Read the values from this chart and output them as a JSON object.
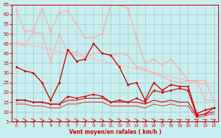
{
  "xlabel": "Vent moyen/en rafales ( km/h )",
  "xlim": [
    -0.5,
    23.5
  ],
  "ylim": [
    5,
    65
  ],
  "yticks": [
    5,
    10,
    15,
    20,
    25,
    30,
    35,
    40,
    45,
    50,
    55,
    60,
    65
  ],
  "xticks": [
    0,
    1,
    2,
    3,
    4,
    5,
    6,
    7,
    8,
    9,
    10,
    11,
    12,
    13,
    14,
    15,
    16,
    17,
    18,
    19,
    20,
    21,
    22,
    23
  ],
  "bg_color": "#c8eef0",
  "grid_color": "#a0c8c8",
  "series": [
    {
      "name": "light_upper",
      "data": [
        62,
        51,
        52,
        63,
        51,
        61,
        62,
        55,
        48,
        48,
        50,
        65,
        65,
        63,
        48,
        35,
        37,
        34,
        37,
        32,
        26,
        26,
        16,
        16
      ],
      "color": "#ffaaaa",
      "lw": 0.9,
      "marker": "D",
      "ms": 2.0,
      "zorder": 2
    },
    {
      "name": "light_lower",
      "data": [
        46,
        45,
        44,
        43,
        42,
        41,
        40,
        39,
        38,
        37,
        36,
        35,
        34,
        33,
        32,
        31,
        30,
        29,
        28,
        27,
        26,
        25,
        24,
        23
      ],
      "color": "#ffbbbb",
      "lw": 0.9,
      "marker": null,
      "ms": 0,
      "zorder": 1
    },
    {
      "name": "light_mid",
      "data": [
        45,
        44,
        51,
        50,
        36,
        50,
        40,
        41,
        38,
        40,
        40,
        39,
        40,
        39,
        33,
        32,
        30,
        28,
        26,
        25,
        26,
        26,
        26,
        16
      ],
      "color": "#ffaaaa",
      "lw": 0.9,
      "marker": "D",
      "ms": 2.0,
      "zorder": 2
    },
    {
      "name": "dark_upper",
      "data": [
        33,
        31,
        30,
        25,
        16,
        25,
        42,
        36,
        37,
        45,
        40,
        39,
        33,
        24,
        25,
        16,
        25,
        21,
        24,
        23,
        23,
        9,
        11,
        12
      ],
      "color": "#cc0000",
      "lw": 1.0,
      "marker": "D",
      "ms": 2.0,
      "zorder": 3
    },
    {
      "name": "dark_lower",
      "data": [
        16,
        16,
        15,
        15,
        14,
        14,
        18,
        17,
        18,
        19,
        18,
        15,
        16,
        15,
        17,
        15,
        21,
        20,
        21,
        22,
        21,
        8,
        9,
        12
      ],
      "color": "#dd0000",
      "lw": 0.9,
      "marker": "D",
      "ms": 2.0,
      "zorder": 3
    },
    {
      "name": "dark_flat1",
      "data": [
        16,
        16,
        15,
        15,
        14,
        14,
        16,
        16,
        17,
        17,
        17,
        15,
        15,
        15,
        15,
        14,
        16,
        15,
        16,
        15,
        15,
        8,
        9,
        10
      ],
      "color": "#cc0000",
      "lw": 0.8,
      "marker": null,
      "ms": 0,
      "zorder": 2
    },
    {
      "name": "dark_flat2",
      "data": [
        14,
        14,
        13,
        13,
        12,
        12,
        14,
        14,
        15,
        15,
        15,
        13,
        13,
        13,
        13,
        12,
        14,
        13,
        14,
        13,
        13,
        7,
        8,
        9
      ],
      "color": "#ee2222",
      "lw": 0.7,
      "marker": null,
      "ms": 0,
      "zorder": 2
    }
  ],
  "arrow_angles_right": [
    0,
    1,
    2,
    3,
    4,
    5,
    6,
    7,
    8,
    9,
    10,
    11,
    12,
    13,
    14,
    15,
    16,
    17,
    18,
    19,
    20,
    21,
    22,
    23
  ],
  "arrow_angles_upleft": [
    12,
    13,
    14,
    15,
    16,
    17,
    18,
    19,
    20,
    21,
    22,
    23
  ],
  "arrow_color": "#cc0000"
}
